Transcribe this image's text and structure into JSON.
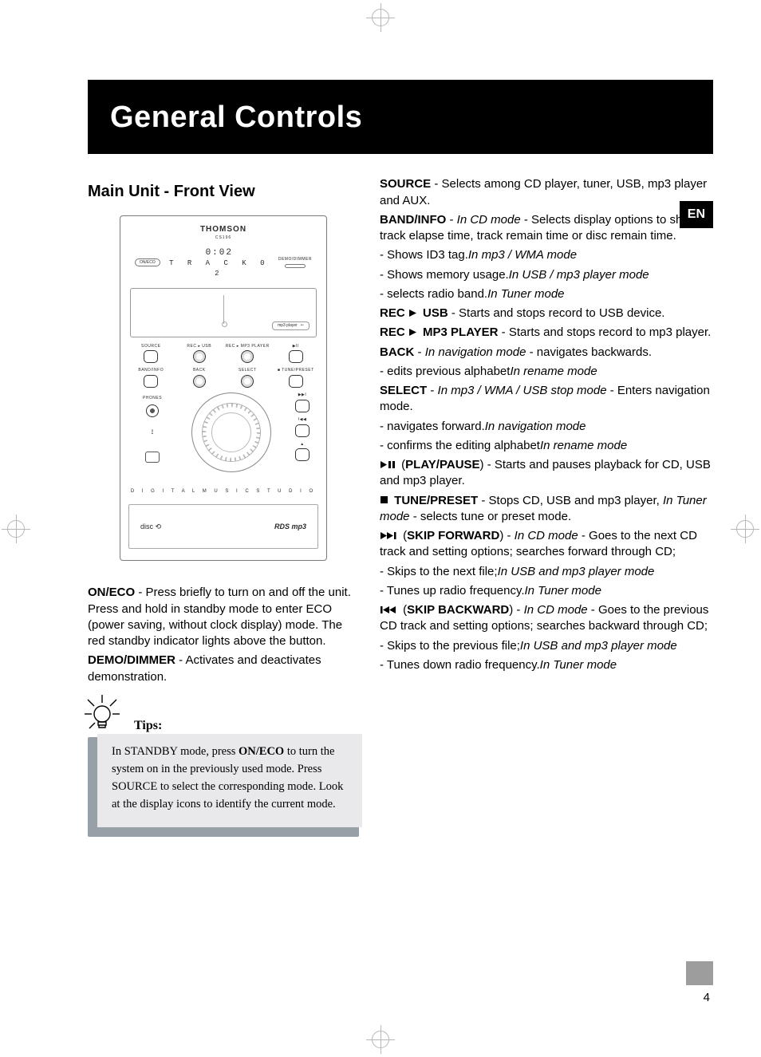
{
  "page": {
    "title": "General Controls",
    "language_tab": "EN",
    "page_number": "4"
  },
  "left": {
    "section_title": "Main Unit - Front View",
    "device": {
      "brand": "THOMSON",
      "model": "CS196",
      "lcd_button_left": "ON/ECO",
      "lcd_time": "0:02",
      "lcd_track": "T R A C K   0 2",
      "lcd_label_right": "DEMO/DIMMER",
      "slot_label": "mp3 player",
      "row1": {
        "c1": "SOURCE",
        "c2": "REC ▸ USB",
        "c3": "REC ▸ MP3 PLAYER",
        "c4": "▶II"
      },
      "row2": {
        "c1": "BAND/INFO",
        "c2": "BACK",
        "c3": "SELECT",
        "c4": "■ TUNE/PRESET"
      },
      "phones_label": "PHONES",
      "vb": {
        "a": "▶▶I",
        "b": "I◀◀",
        "c": "▲"
      },
      "strip": "D I G I T A L   M U S I C   S T U D I O",
      "bottom_left": "disc  ⟲",
      "bottom_right": "RDS  mp3"
    },
    "desc1_bold": "ON/ECO",
    "desc1_text": " - Press briefly to turn on and off the unit. Press and hold in standby mode to enter ECO (power saving, without clock display) mode. The red standby indicator lights above the button.",
    "desc2_bold": "DEMO/DIMMER",
    "desc2_text": " - Activates and deactivates demonstration.",
    "tips_label": "Tips:",
    "tips_body_a": "In STANDBY mode, press ",
    "tips_body_bold": "ON/ECO",
    "tips_body_b": " to turn the system on in the previously used mode. Press SOURCE to select the corresponding mode. Look at the display icons to identify the current mode."
  },
  "right": {
    "p": [
      {
        "b": "SOURCE",
        "t": " - Selects among CD player, tuner, USB, mp3 player and AUX."
      },
      {
        "b": "BAND/INFO",
        "t": " - ",
        "i": "In CD mode",
        "t2": " - Selects  display options to show track elapse time, track remain time or disc remain time."
      },
      {
        "i": "In mp3 / WMA mode",
        "t": " - Shows ID3 tag."
      },
      {
        "i": "In USB / mp3 player mode",
        "t": " - Shows memory usage."
      },
      {
        "i": "In Tuner mode",
        "t": " - selects radio band."
      },
      {
        "icon": "play",
        "b": "REC     USB",
        "t": " - Starts and stops record to USB device."
      },
      {
        "icon": "play",
        "b": "REC     MP3 PLAYER",
        "t": " - Starts and stops record to mp3 player."
      },
      {
        "b": "BACK",
        "t": " -  ",
        "i": "In navigation mode",
        "t2": " - navigates backwards."
      },
      {
        "i": "In rename mode",
        "t": " - edits previous alphabet"
      },
      {
        "b": "SELECT",
        "t": " - ",
        "i": "In mp3 / WMA / USB stop mode",
        "t2": " - Enters navigation mode."
      },
      {
        "i": "In navigation mode",
        "t": " - navigates forward."
      },
      {
        "i": "In rename mode",
        "t": " - confirms the editing alphabet"
      },
      {
        "icon": "playpause",
        "paren_b": "PLAY/PAUSE",
        "t": " - Starts and pauses playback for CD, USB and mp3 player."
      },
      {
        "icon": "stop",
        "b": "  TUNE/PRESET",
        "t": " - Stops CD, USB and mp3 player, ",
        "i": "In Tuner mode",
        "t2": " - selects tune or preset mode."
      },
      {
        "icon": "fwd",
        "paren_b": "SKIP FORWARD",
        "t": " - ",
        "i": "In CD mode",
        "t2": " - Goes to the next CD track and setting options; searches forward through CD;"
      },
      {
        "i": "In USB and mp3 player mode",
        "t": " - Skips to the next file;"
      },
      {
        "i": "In Tuner mode",
        "t": " - Tunes up radio frequency."
      },
      {
        "icon": "back",
        "paren_b": "SKIP BACKWARD",
        "t": " - ",
        "i": "In CD mode",
        "t2": " - Goes to the previous CD track and setting options; searches backward through CD;"
      },
      {
        "i": "In USB and mp3 player mode",
        "t": " - Skips to the previous file;"
      },
      {
        "i": "In Tuner mode",
        "t": " - Tunes down radio frequency."
      }
    ]
  },
  "icons": {
    "play": "▶",
    "playpause": "▶II",
    "stop": "■",
    "fwd": "▶▶I",
    "back": "I◀◀"
  }
}
